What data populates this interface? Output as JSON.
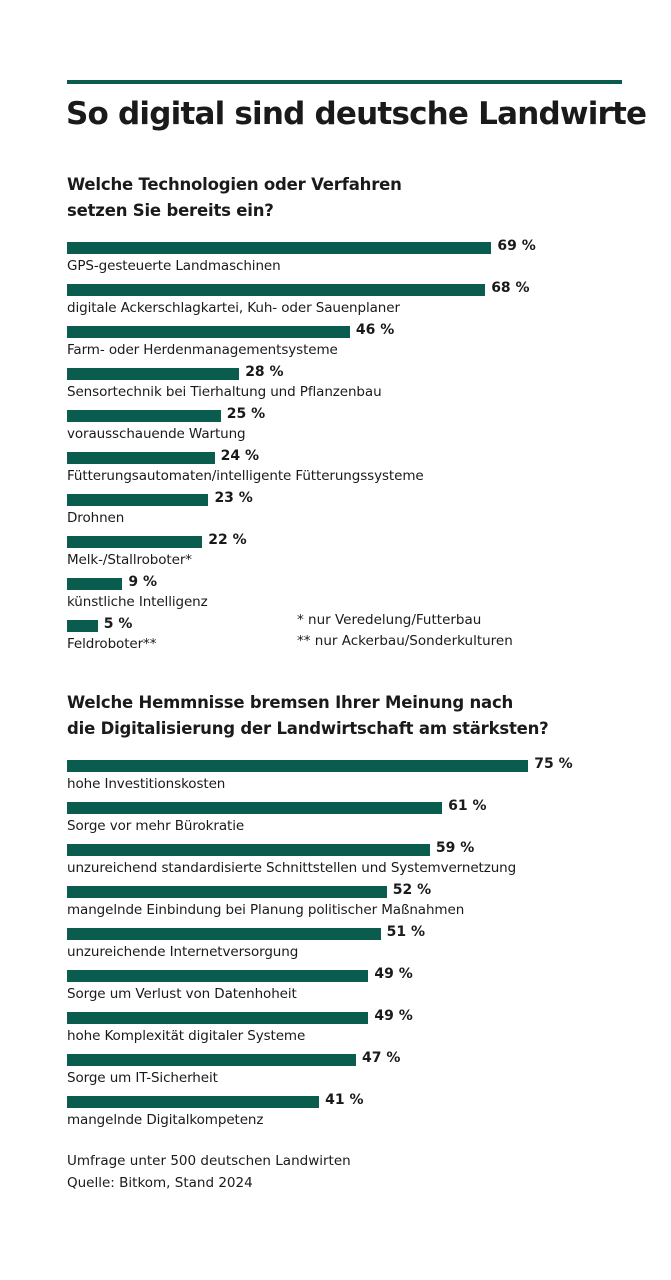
{
  "title": "So digital sind deutsche Landwirte",
  "colors": {
    "bar": "#0a5c4e",
    "rule": "#0a5c4e",
    "text": "#1a1a1a"
  },
  "chart_data": [
    {
      "type": "bar",
      "orientation": "horizontal",
      "title": "Welche Technologien oder Verfahren setzen Sie bereits ein?",
      "title_lines": [
        "Welche Technologien oder Verfahren",
        "setzen Sie bereits ein?"
      ],
      "unit": "%",
      "categories": [
        "GPS-gesteuerte Landmaschinen",
        "digitale Ackerschlagkartei, Kuh- oder Sauenplaner",
        "Farm- oder Herdenmanagementsysteme",
        "Sensortechnik bei Tierhaltung und Pflanzenbau",
        "vorausschauende Wartung",
        "Fütterungsautomaten/intelligente Fütterungssysteme",
        "Drohnen",
        "Melk-/Stallroboter*",
        "künstliche Intelligenz",
        "Feldroboter**"
      ],
      "values": [
        69,
        68,
        46,
        28,
        25,
        24,
        23,
        22,
        9,
        5
      ],
      "labels": [
        "69 %",
        "68 %",
        "46 %",
        "28 %",
        "25 %",
        "24 %",
        "23 %",
        "22 %",
        "9 %",
        "5 %"
      ],
      "notes": [
        "* nur Veredelung/Futterbau",
        "** nur Ackerbau/Sonderkulturen"
      ]
    },
    {
      "type": "bar",
      "orientation": "horizontal",
      "title": "Welche Hemmnisse bremsen Ihrer Meinung nach die Digitalisierung der Landwirtschaft am stärksten?",
      "title_lines": [
        "Welche Hemmnisse bremsen Ihrer Meinung nach",
        "die Digitalisierung der Landwirtschaft am stärksten?"
      ],
      "unit": "%",
      "categories": [
        "hohe Investitionskosten",
        "Sorge vor mehr Bürokratie",
        "unzureichend standardisierte Schnittstellen und Systemvernetzung",
        "mangelnde Einbindung bei Planung politischer Maßnahmen",
        "unzureichende Internetversorgung",
        "Sorge um Verlust von Datenhoheit",
        "hohe Komplexität digitaler Systeme",
        "Sorge um IT-Sicherheit",
        "mangelnde Digitalkompetenz"
      ],
      "values": [
        75,
        61,
        59,
        52,
        51,
        49,
        49,
        47,
        41
      ],
      "labels": [
        "75 %",
        "61 %",
        "59 %",
        "52 %",
        "51 %",
        "49 %",
        "49 %",
        "47 %",
        "41 %"
      ]
    }
  ],
  "footer": [
    "Umfrage unter 500 deutschen Landwirten",
    "Quelle: Bitkom, Stand 2024"
  ]
}
